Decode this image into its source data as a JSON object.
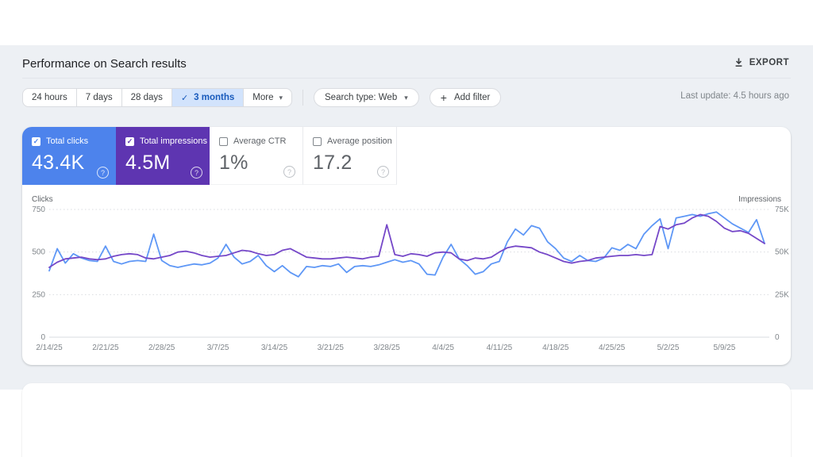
{
  "header": {
    "title": "Performance on Search results",
    "export_label": "EXPORT"
  },
  "filters": {
    "date_ranges": [
      {
        "label": "24 hours",
        "selected": false
      },
      {
        "label": "7 days",
        "selected": false
      },
      {
        "label": "28 days",
        "selected": false
      },
      {
        "label": "3 months",
        "selected": true
      }
    ],
    "more_label": "More",
    "search_type_label": "Search type: Web",
    "add_filter_label": "Add filter",
    "last_update": "Last update: 4.5 hours ago"
  },
  "icons": {
    "export": "download-arrow",
    "more_chevron": "▾",
    "selected_check": "✓",
    "help_glyph": "?",
    "add_plus": "+"
  },
  "metrics": [
    {
      "label": "Total clicks",
      "value": "43.4K",
      "checked": true,
      "color": "#4d83ec"
    },
    {
      "label": "Total impressions",
      "value": "4.5M",
      "checked": true,
      "color": "#5e35b1"
    },
    {
      "label": "Average CTR",
      "value": "1%",
      "checked": false
    },
    {
      "label": "Average position",
      "value": "17.2",
      "checked": false
    }
  ],
  "chart_data": {
    "type": "line",
    "title": "Clicks and impressions over time",
    "grid": "dotted horizontal",
    "legend_position": "none (color-coded to metric cards)",
    "left_axis": {
      "label": "Clicks",
      "ticks": [
        "750",
        "500",
        "250",
        "0"
      ],
      "range": [
        0,
        750
      ]
    },
    "right_axis": {
      "label": "Impressions",
      "ticks": [
        "75K",
        "50K",
        "25K",
        "0"
      ],
      "range": [
        0,
        75
      ],
      "unit": "thousands"
    },
    "x_ticks": [
      "2/14/25",
      "2/21/25",
      "2/28/25",
      "3/7/25",
      "3/14/25",
      "3/21/25",
      "3/28/25",
      "4/4/25",
      "4/11/25",
      "4/18/25",
      "4/25/25",
      "5/2/25",
      "5/9/25"
    ],
    "x_tick_days": [
      0,
      7,
      14,
      21,
      28,
      35,
      42,
      49,
      56,
      63,
      70,
      77,
      84
    ],
    "num_days": 90,
    "series": [
      {
        "name": "Clicks",
        "axis": "left",
        "color": "#5e97f6",
        "values": [
          390,
          520,
          435,
          490,
          465,
          450,
          445,
          535,
          445,
          430,
          445,
          450,
          445,
          605,
          450,
          420,
          410,
          420,
          430,
          425,
          435,
          465,
          545,
          470,
          430,
          445,
          480,
          420,
          385,
          420,
          380,
          355,
          415,
          410,
          420,
          415,
          430,
          380,
          415,
          420,
          415,
          425,
          440,
          455,
          440,
          450,
          430,
          370,
          365,
          470,
          545,
          460,
          420,
          370,
          385,
          430,
          445,
          560,
          635,
          600,
          655,
          640,
          560,
          520,
          465,
          445,
          480,
          450,
          445,
          465,
          525,
          510,
          545,
          520,
          605,
          655,
          695,
          520,
          700,
          710,
          720,
          710,
          725,
          735,
          700,
          665,
          640,
          615,
          690,
          550
        ]
      },
      {
        "name": "Impressions (thousands)",
        "axis": "right",
        "color": "#7547c8",
        "values": [
          41,
          44,
          46,
          46.5,
          47,
          46,
          45.5,
          46,
          47.5,
          48.5,
          49,
          48.5,
          46.5,
          46,
          47,
          48,
          50,
          50.5,
          49.5,
          48,
          47,
          47.5,
          48,
          49.5,
          51,
          50.5,
          49,
          48,
          48.5,
          51,
          52,
          49.5,
          47,
          46.5,
          46,
          46,
          46.5,
          47,
          46.5,
          46,
          47,
          47.5,
          66,
          48.5,
          47.5,
          49,
          48.5,
          47.5,
          49.5,
          50,
          49.5,
          46,
          45,
          46.5,
          46,
          47,
          50,
          52.5,
          53.5,
          53,
          52.5,
          50,
          48.5,
          46.5,
          44.5,
          43.5,
          44.5,
          45,
          46.5,
          47,
          47.5,
          48,
          48,
          48.5,
          48,
          48.5,
          65,
          63.5,
          66,
          67,
          70,
          72,
          71,
          68,
          64,
          62,
          62.5,
          61,
          58,
          55
        ]
      }
    ]
  }
}
